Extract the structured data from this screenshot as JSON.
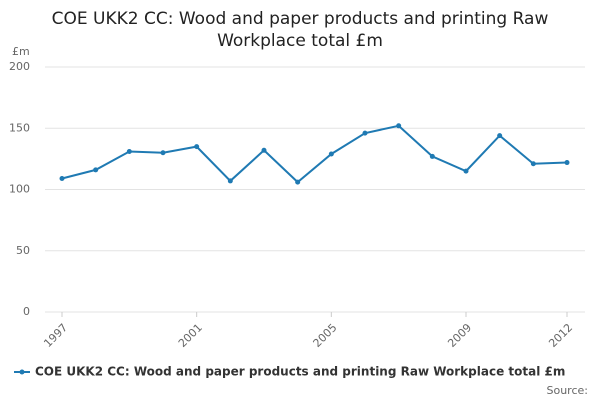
{
  "chart_data": {
    "type": "line",
    "title": "COE UKK2 CC: Wood and paper products and printing Raw Workplace total £m",
    "y_label": "£m",
    "source": "Source:",
    "x": [
      1997,
      1998,
      1999,
      2000,
      2001,
      2002,
      2003,
      2004,
      2005,
      2006,
      2007,
      2008,
      2009,
      2010,
      2011,
      2012
    ],
    "series": [
      {
        "name": "COE UKK2 CC: Wood and paper products and printing Raw Workplace total £m",
        "color": "#1f7ab3",
        "values": [
          109,
          116,
          131,
          130,
          135,
          107,
          132,
          106,
          129,
          146,
          152,
          127,
          115,
          144,
          121,
          122
        ]
      }
    ],
    "xlim": [
      1997,
      2012
    ],
    "xticks": [
      1997,
      2001,
      2005,
      2009,
      2012
    ],
    "ylim": [
      0,
      200
    ],
    "yticks": [
      0,
      50,
      100,
      150,
      200
    ],
    "grid": true,
    "legend": "bottom"
  }
}
